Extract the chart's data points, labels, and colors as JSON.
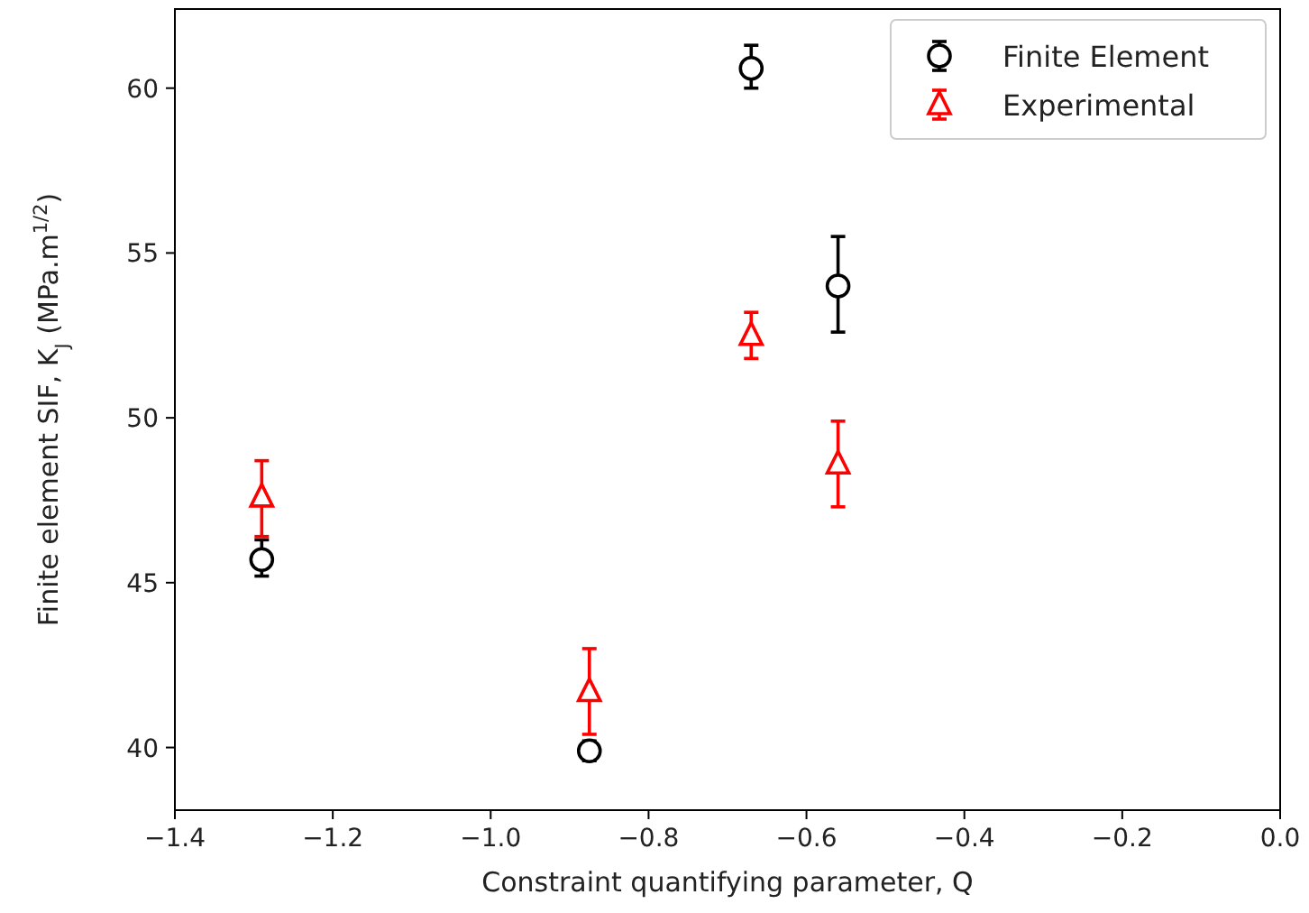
{
  "chart_data": {
    "type": "scatter",
    "xlabel": "Constraint quantifying parameter, Q",
    "ylabel": "Finite element SIF, K$_{J}$ (MPa.m$^{1/2}$)",
    "x": [
      -1.29,
      -0.875,
      -0.67,
      -0.56
    ],
    "series": [
      {
        "name": "Finite Element",
        "color": "#000000",
        "marker": "circle",
        "values": [
          45.7,
          39.9,
          60.6,
          54.0
        ],
        "errors": [
          [
            45.2,
            46.3
          ],
          [
            39.6,
            40.2
          ],
          [
            60.0,
            61.3
          ],
          [
            52.6,
            55.5
          ]
        ]
      },
      {
        "name": "Experimental",
        "color": "#ff0000",
        "marker": "triangle",
        "values": [
          47.6,
          41.7,
          52.5,
          48.6
        ],
        "errors": [
          [
            46.4,
            48.7
          ],
          [
            40.4,
            43.0
          ],
          [
            51.8,
            53.2
          ],
          [
            47.3,
            49.9
          ]
        ]
      }
    ],
    "xlim": [
      -1.4,
      0.0
    ],
    "ylim": [
      38.1,
      62.4
    ],
    "xticks": [
      {
        "value": -1.4,
        "label": "−1.4"
      },
      {
        "value": -1.2,
        "label": "−1.2"
      },
      {
        "value": -1.0,
        "label": "−1.0"
      },
      {
        "value": -0.8,
        "label": "−0.8"
      },
      {
        "value": -0.6,
        "label": "−0.6"
      },
      {
        "value": -0.4,
        "label": "−0.4"
      },
      {
        "value": -0.2,
        "label": "−0.2"
      },
      {
        "value": 0,
        "label": "0.0"
      }
    ],
    "yticks": [
      40,
      45,
      50,
      55,
      60
    ],
    "legend": "top right",
    "grid": false
  }
}
